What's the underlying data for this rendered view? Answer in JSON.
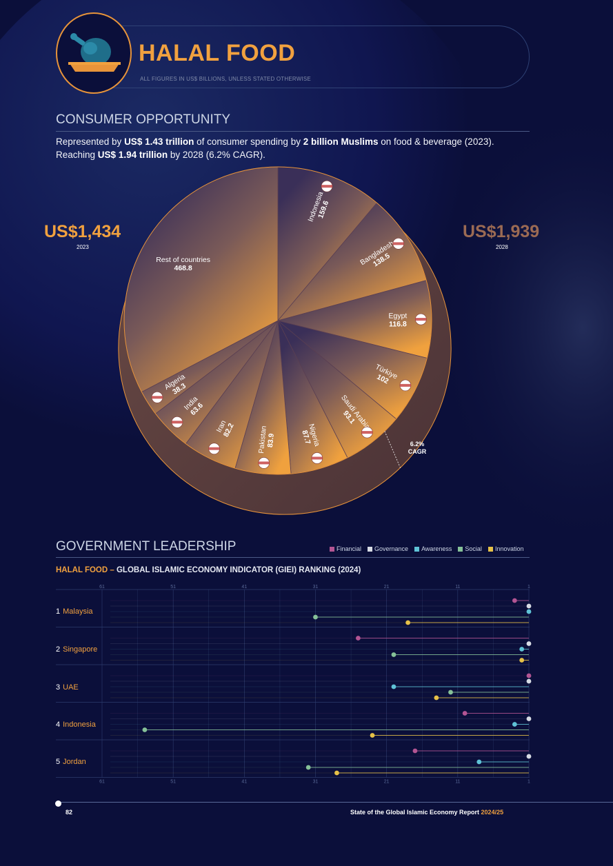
{
  "header": {
    "title": "HALAL FOOD",
    "subtitle": "ALL FIGURES IN US$ BILLIONS, UNLESS STATED OTHERWISE"
  },
  "consumer": {
    "title": "CONSUMER OPPORTUNITY",
    "intro_line1_a": "Represented by ",
    "intro_line1_b": "US$ 1.43 trillion",
    "intro_line1_c": " of consumer spending by ",
    "intro_line1_d": "2 billion Muslims",
    "intro_line1_e": " on food & beverage (2023).",
    "intro_line2_a": "Reaching ",
    "intro_line2_b": "US$ 1.94 trillion",
    "intro_line2_c": " by 2028 (6.2% CAGR).",
    "value_2023": "US$1,434",
    "year_2023": "2023",
    "value_2028": "US$1,939",
    "year_2028": "2028",
    "cagr_pct": "6.2%",
    "cagr_label": "CAGR"
  },
  "colors": {
    "Financial": "#b35593",
    "Governance": "#d7dbe4",
    "Awareness": "#5fc3d6",
    "Social": "#86c198",
    "Innovation": "#e6c148",
    "accent": "#f1a13f"
  },
  "government": {
    "title": "GOVERNMENT LEADERSHIP",
    "chart_prefix": "HALAL FOOD",
    "chart_dash": " – ",
    "chart_title": "GLOBAL ISLAMIC ECONOMY INDICATOR (GIEI) RANKING (2024)"
  },
  "footer": {
    "page": "82",
    "report": "State of the Global Islamic Economy Report ",
    "year": "2024/25"
  },
  "chart_data": [
    {
      "type": "pie",
      "categories": [
        "Indonesia",
        "Bangladesh",
        "Egypt",
        "Türkiye",
        "Saudi Arabia",
        "Nigeria",
        "Pakistan",
        "Iran",
        "India",
        "Algeria",
        "Rest of countries"
      ],
      "values": [
        159.6,
        138.5,
        116.8,
        102,
        93.1,
        87.7,
        83.9,
        82.2,
        63.6,
        38.3,
        468.8
      ],
      "labels": [
        "159.6",
        "138.5",
        "116.8",
        "102",
        "93.1",
        "87.7",
        "83.9",
        "82.2",
        "63.6",
        "38.3",
        "468.8"
      ],
      "total_2023": 1434,
      "total_2028": 1939
    },
    {
      "type": "scatter",
      "xlabel": "",
      "ylabel": "",
      "x_ticks": [
        "61",
        "51",
        "41",
        "31",
        "21",
        "11",
        "1"
      ],
      "xlim": [
        61,
        1
      ],
      "series_names": [
        "Financial",
        "Governance",
        "Awareness",
        "Social",
        "Innovation"
      ],
      "rows": [
        {
          "rank": "1",
          "country": "Malaysia",
          "values": [
            3,
            1,
            1,
            31,
            18
          ]
        },
        {
          "rank": "2",
          "country": "Singapore",
          "values": [
            25,
            1,
            2,
            20,
            2
          ]
        },
        {
          "rank": "3",
          "country": "UAE",
          "values": [
            1,
            1,
            20,
            12,
            14
          ]
        },
        {
          "rank": "4",
          "country": "Indonesia",
          "values": [
            10,
            1,
            3,
            55,
            23
          ]
        },
        {
          "rank": "5",
          "country": "Jordan",
          "values": [
            17,
            1,
            8,
            32,
            28
          ]
        }
      ]
    }
  ]
}
